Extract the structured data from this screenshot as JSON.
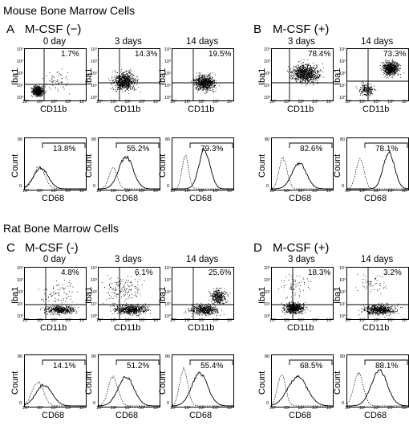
{
  "figure": {
    "sections": [
      {
        "id": "mouse",
        "title": "Mouse Bone Marrow Cells",
        "groups": [
          {
            "letter": "A",
            "condition": "M-CSF (−)",
            "columns": [
              {
                "label": "0 day",
                "scatter_pct": "1.7%",
                "hist_pct": "13.8%"
              },
              {
                "label": "3 days",
                "scatter_pct": "14.3%",
                "hist_pct": "55.2%"
              },
              {
                "label": "14 days",
                "scatter_pct": "19.5%",
                "hist_pct": "79.3%"
              }
            ]
          },
          {
            "letter": "B",
            "condition": "M-CSF (+)",
            "columns": [
              {
                "label": "3 days",
                "scatter_pct": "78.4%",
                "hist_pct": "82.6%"
              },
              {
                "label": "14 days",
                "scatter_pct": "73.3%",
                "hist_pct": "78.1%"
              }
            ]
          }
        ]
      },
      {
        "id": "rat",
        "title": "Rat Bone Marrow Cells",
        "groups": [
          {
            "letter": "C",
            "condition": "M-CSF (-)",
            "columns": [
              {
                "label": "0 day",
                "scatter_pct": "4.8%",
                "hist_pct": "14.1%"
              },
              {
                "label": "3 days",
                "scatter_pct": "6.1%",
                "hist_pct": "51.2%"
              },
              {
                "label": "14 days",
                "scatter_pct": "25.6%",
                "hist_pct": "55.4%"
              }
            ]
          },
          {
            "letter": "D",
            "condition": "M-CSF (+)",
            "columns": [
              {
                "label": "3 days",
                "scatter_pct": "18.3%",
                "hist_pct": "68.5%"
              },
              {
                "label": "14 days",
                "scatter_pct": "3.2%",
                "hist_pct": "88.1%"
              }
            ]
          }
        ]
      }
    ],
    "axis_labels": {
      "scatter_y": "Iba1",
      "scatter_x": "CD11b",
      "hist_y": "Count",
      "hist_x": "CD68"
    },
    "ticks": [
      "10⁰",
      "10¹",
      "10²",
      "10³",
      "10⁴"
    ],
    "hist_yticks": [
      "0",
      "80"
    ]
  }
}
